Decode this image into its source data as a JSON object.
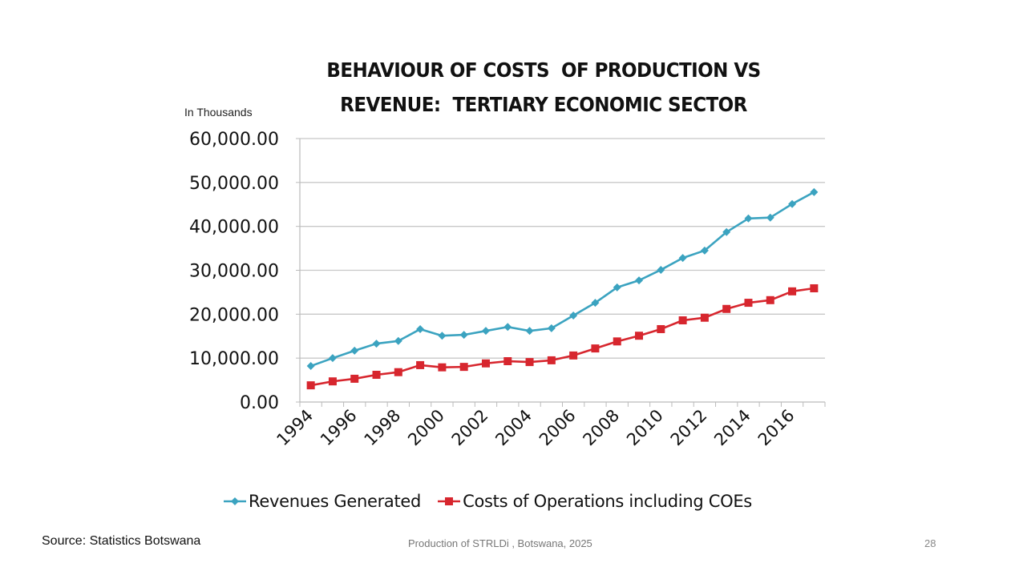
{
  "slide": {
    "title_line1": "BEHAVIOUR OF COSTS  OF PRODUCTION VS",
    "title_line2": "REVENUE:  TERTIARY ECONOMIC SECTOR",
    "unit_label": "In Thousands",
    "source": "Source:  Statistics Botswana",
    "footer": "Production of STRLDi , Botswana, 2025",
    "page_number": "28"
  },
  "chart_data": {
    "type": "line",
    "title": "BEHAVIOUR OF COSTS OF PRODUCTION VS REVENUE: TERTIARY ECONOMIC SECTOR",
    "xlabel": "",
    "ylabel": "In Thousands",
    "ylim": [
      0,
      60000
    ],
    "yticks": [
      0,
      10000,
      20000,
      30000,
      40000,
      50000,
      60000
    ],
    "ytick_labels": [
      "0.00",
      "10,000.00",
      "20,000.00",
      "30,000.00",
      "40,000.00",
      "50,000.00",
      "60,000.00"
    ],
    "grid": true,
    "legend_position": "bottom",
    "x": [
      "1994",
      "1995",
      "1996",
      "1997",
      "1998",
      "1999",
      "2000",
      "2001",
      "2002",
      "2003",
      "2004",
      "2005",
      "2006",
      "2007",
      "2008",
      "2009",
      "2010",
      "2011",
      "2012",
      "2013",
      "2014",
      "2015",
      "2016",
      "2017"
    ],
    "xtick_labels": [
      "1994",
      "1996",
      "1998",
      "2000",
      "2002",
      "2004",
      "2006",
      "2008",
      "2010",
      "2012",
      "2014",
      "2016"
    ],
    "series": [
      {
        "name": "Revenues Generated",
        "color": "#3BA3C0",
        "marker": "diamond",
        "values": [
          8200,
          10000,
          11700,
          13300,
          13900,
          16600,
          15100,
          15300,
          16200,
          17100,
          16200,
          16800,
          19700,
          22600,
          26100,
          27700,
          30100,
          32800,
          34500,
          38700,
          41800,
          42000,
          45100,
          47800
        ]
      },
      {
        "name": "Costs of Operations including COEs",
        "color": "#D7262E",
        "marker": "square",
        "values": [
          3800,
          4700,
          5300,
          6200,
          6800,
          8400,
          7900,
          8000,
          8800,
          9300,
          9100,
          9500,
          10600,
          12200,
          13800,
          15100,
          16600,
          18600,
          19200,
          21200,
          22600,
          23200,
          25200,
          25900
        ]
      }
    ]
  }
}
